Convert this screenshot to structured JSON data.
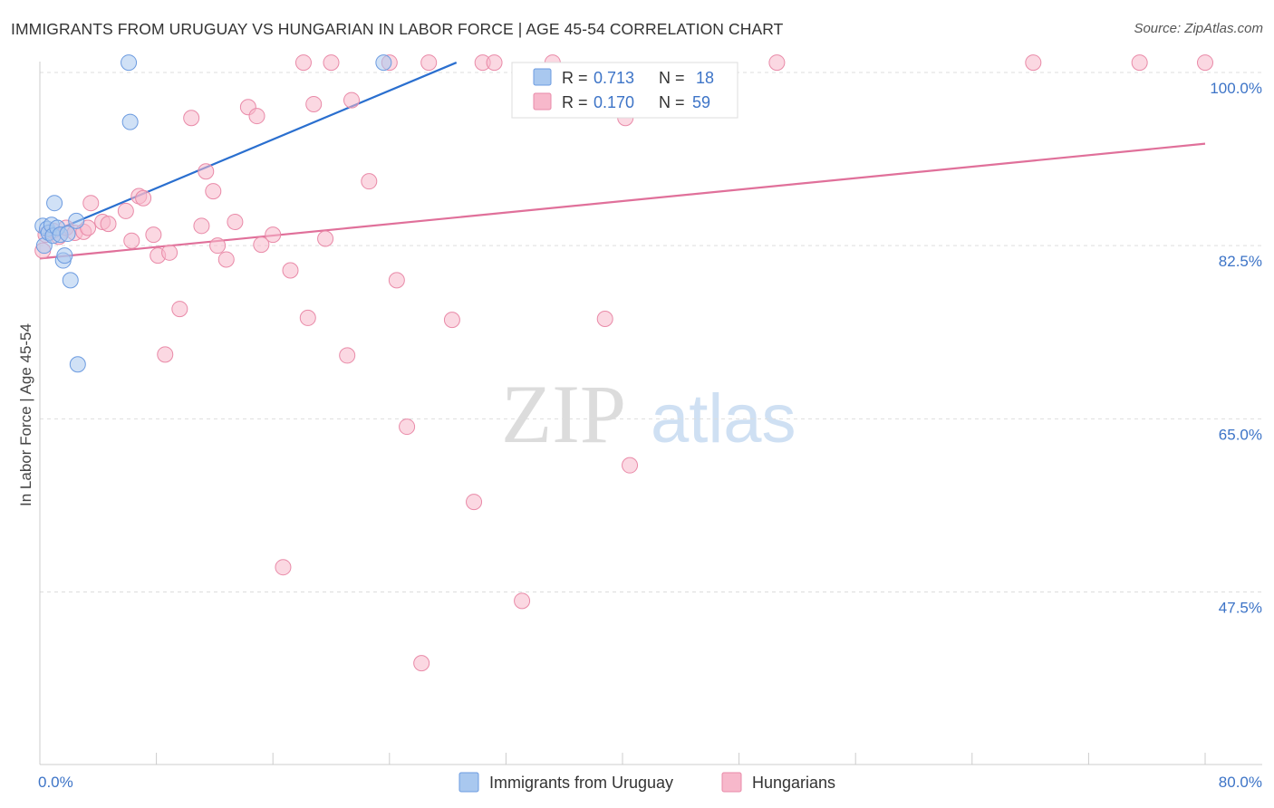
{
  "header": {
    "title": "IMMIGRANTS FROM URUGUAY VS HUNGARIAN IN LABOR FORCE | AGE 45-54 CORRELATION CHART",
    "source": "Source: ZipAtlas.com"
  },
  "watermark": {
    "zip": "ZIP",
    "atlas": "atlas"
  },
  "colors": {
    "blue_fill": "#a9c8ef",
    "blue_stroke": "#6c9be0",
    "blue_line": "#2a6fcf",
    "pink_fill": "#f7b8cb",
    "pink_stroke": "#e98aa8",
    "pink_line": "#e0709a",
    "tick_text": "#3d74c7",
    "grid": "#dddddd"
  },
  "chart_data": {
    "type": "scatter",
    "title": "IMMIGRANTS FROM URUGUAY VS HUNGARIAN IN LABOR FORCE | AGE 45-54 CORRELATION CHART",
    "xlabel": "",
    "ylabel": "In Labor Force | Age 45-54",
    "xlim": [
      0,
      80
    ],
    "ylim": [
      32,
      101
    ],
    "x_tick_labels": [
      "0.0%",
      "80.0%"
    ],
    "y_ticks": [
      100,
      82.5,
      65,
      47.5
    ],
    "y_tick_labels": [
      "100.0%",
      "82.5%",
      "65.0%",
      "47.5%"
    ],
    "legend_top": [
      {
        "r_label": "R = ",
        "r_value": "0.713",
        "n_label": "N = ",
        "n_value": "18"
      },
      {
        "r_label": "R = ",
        "r_value": "0.170",
        "n_label": "N = ",
        "n_value": "59"
      }
    ],
    "series": [
      {
        "name": "Immigrants from Uruguay",
        "color": "blue",
        "points": [
          [
            0.2,
            84.5
          ],
          [
            0.3,
            82.5
          ],
          [
            0.5,
            84.2
          ],
          [
            0.6,
            83.8
          ],
          [
            0.8,
            84.6
          ],
          [
            0.9,
            83.5
          ],
          [
            1.0,
            86.8
          ],
          [
            1.2,
            84.3
          ],
          [
            1.4,
            83.6
          ],
          [
            1.6,
            81.0
          ],
          [
            1.7,
            81.5
          ],
          [
            1.9,
            83.7
          ],
          [
            2.1,
            79.0
          ],
          [
            2.5,
            85.0
          ],
          [
            2.6,
            70.5
          ],
          [
            6.1,
            101.0
          ],
          [
            6.2,
            95.0
          ],
          [
            23.6,
            101.0
          ]
        ],
        "trend": [
          [
            0.2,
            83.5
          ],
          [
            28.6,
            101.0
          ]
        ]
      },
      {
        "name": "Hungarians",
        "color": "pink",
        "points": [
          [
            0.2,
            82.0
          ],
          [
            0.4,
            83.6
          ],
          [
            0.9,
            84.0
          ],
          [
            1.3,
            83.4
          ],
          [
            1.8,
            84.3
          ],
          [
            2.4,
            83.8
          ],
          [
            3.0,
            83.9
          ],
          [
            3.3,
            84.3
          ],
          [
            3.5,
            86.8
          ],
          [
            4.3,
            84.9
          ],
          [
            4.7,
            84.7
          ],
          [
            5.9,
            86.0
          ],
          [
            6.3,
            83.0
          ],
          [
            6.8,
            87.5
          ],
          [
            7.1,
            87.3
          ],
          [
            7.8,
            83.6
          ],
          [
            8.1,
            81.5
          ],
          [
            8.9,
            81.8
          ],
          [
            9.6,
            76.1
          ],
          [
            8.6,
            71.5
          ],
          [
            10.4,
            95.4
          ],
          [
            11.1,
            84.5
          ],
          [
            11.4,
            90.0
          ],
          [
            11.9,
            88.0
          ],
          [
            12.2,
            82.5
          ],
          [
            12.8,
            81.1
          ],
          [
            13.4,
            84.9
          ],
          [
            14.3,
            96.5
          ],
          [
            14.9,
            95.6
          ],
          [
            15.2,
            82.6
          ],
          [
            16.0,
            83.6
          ],
          [
            16.7,
            50.0
          ],
          [
            17.2,
            80.0
          ],
          [
            18.1,
            101.0
          ],
          [
            18.4,
            75.2
          ],
          [
            18.8,
            96.8
          ],
          [
            19.6,
            83.2
          ],
          [
            20.0,
            101.0
          ],
          [
            21.1,
            71.4
          ],
          [
            21.4,
            97.2
          ],
          [
            22.6,
            89.0
          ],
          [
            24.0,
            101.0
          ],
          [
            24.5,
            79.0
          ],
          [
            25.2,
            64.2
          ],
          [
            26.2,
            40.3
          ],
          [
            26.7,
            101.0
          ],
          [
            28.3,
            75.0
          ],
          [
            29.8,
            56.6
          ],
          [
            30.4,
            101.0
          ],
          [
            31.2,
            101.0
          ],
          [
            33.1,
            46.6
          ],
          [
            35.2,
            101.0
          ],
          [
            38.8,
            75.1
          ],
          [
            40.2,
            95.4
          ],
          [
            40.5,
            60.3
          ],
          [
            50.6,
            101.0
          ],
          [
            68.2,
            101.0
          ],
          [
            75.5,
            101.0
          ],
          [
            80.0,
            101.0
          ]
        ],
        "trend": [
          [
            0.0,
            81.2
          ],
          [
            80.0,
            92.8
          ]
        ]
      }
    ]
  }
}
